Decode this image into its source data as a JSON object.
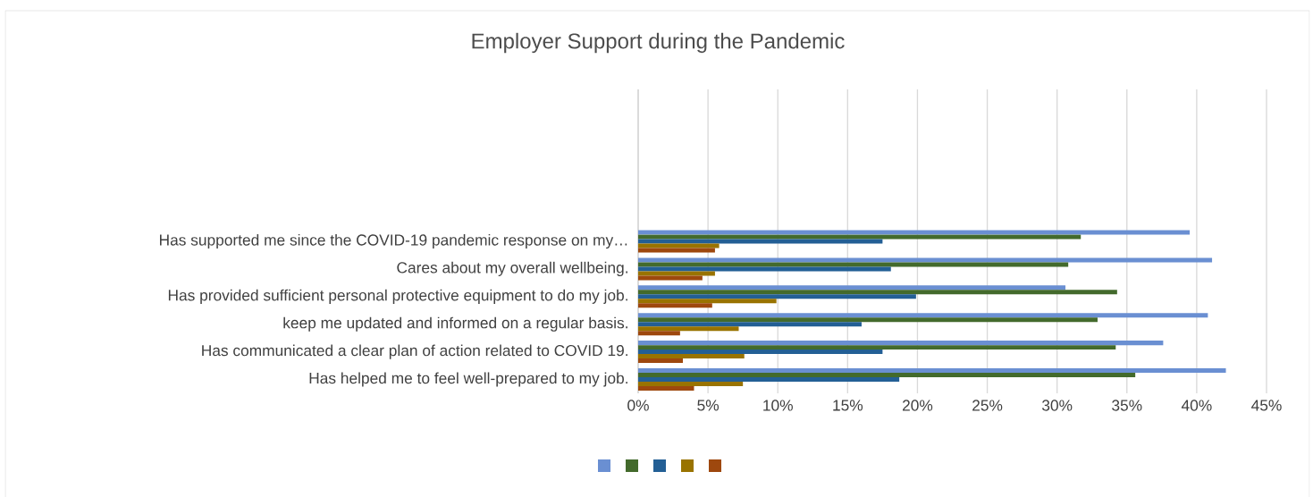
{
  "chart_data": {
    "type": "bar",
    "orientation": "horizontal",
    "title": "Employer Support during the Pandemic",
    "categories": [
      "Has supported me since the COVID-19 pandemic response on my…",
      "Cares about my overall wellbeing.",
      "Has provided sufficient personal protective equipment to do my job.",
      "keep me updated and informed on a regular basis.",
      "Has communicated a clear plan of action related to COVID 19.",
      "Has helped me to feel well-prepared to my job."
    ],
    "series": [
      {
        "color": "#6a8fd2",
        "values": [
          39.5,
          41.1,
          30.6,
          40.8,
          37.6,
          42.1
        ]
      },
      {
        "color": "#436a2c",
        "values": [
          31.7,
          30.8,
          34.3,
          32.9,
          34.2,
          35.6
        ]
      },
      {
        "color": "#235f95",
        "values": [
          17.5,
          18.1,
          19.9,
          16.0,
          17.5,
          18.7
        ]
      },
      {
        "color": "#997300",
        "values": [
          5.8,
          5.5,
          9.9,
          7.2,
          7.6,
          7.5
        ]
      },
      {
        "color": "#9e480e",
        "values": [
          5.5,
          4.6,
          5.3,
          3.0,
          3.2,
          4.0
        ]
      }
    ],
    "xlim": [
      0,
      45
    ],
    "xticks": [
      {
        "value": 0,
        "label": "0%"
      },
      {
        "value": 5,
        "label": "5%"
      },
      {
        "value": 10,
        "label": "10%"
      },
      {
        "value": 15,
        "label": "15%"
      },
      {
        "value": 20,
        "label": "20%"
      },
      {
        "value": 25,
        "label": "25%"
      },
      {
        "value": 30,
        "label": "30%"
      },
      {
        "value": 35,
        "label": "35%"
      },
      {
        "value": 40,
        "label": "40%"
      },
      {
        "value": 45,
        "label": "45%"
      }
    ],
    "grid": "x"
  }
}
